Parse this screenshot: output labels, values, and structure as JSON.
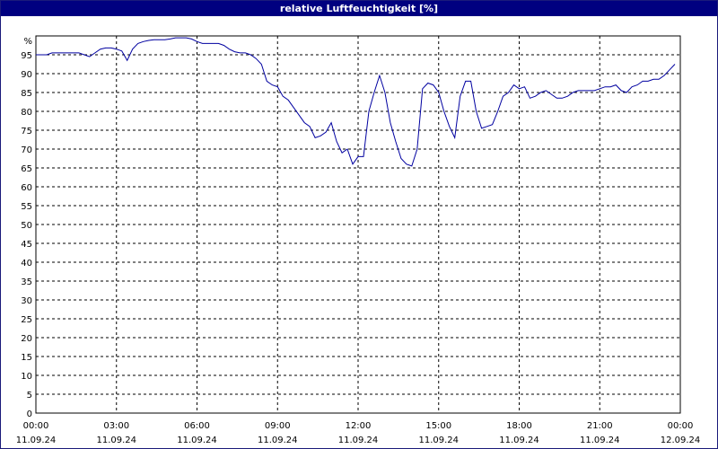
{
  "window": {
    "title": "relative Luftfeuchtigkeit [%]"
  },
  "chart_data": {
    "type": "line",
    "title": "relative Luftfeuchtigkeit [%]",
    "y_unit_label": "%",
    "ylim": [
      0,
      100
    ],
    "y_ticks": [
      0,
      5,
      10,
      15,
      20,
      25,
      30,
      35,
      40,
      45,
      50,
      55,
      60,
      65,
      70,
      75,
      80,
      85,
      90,
      95
    ],
    "x_ticks": [
      {
        "time": "00:00",
        "date": "11.09.24"
      },
      {
        "time": "03:00",
        "date": "11.09.24"
      },
      {
        "time": "06:00",
        "date": "11.09.24"
      },
      {
        "time": "09:00",
        "date": "11.09.24"
      },
      {
        "time": "12:00",
        "date": "11.09.24"
      },
      {
        "time": "15:00",
        "date": "11.09.24"
      },
      {
        "time": "18:00",
        "date": "11.09.24"
      },
      {
        "time": "21:00",
        "date": "11.09.24"
      },
      {
        "time": "00:00",
        "date": "12.09.24"
      }
    ],
    "grid": true,
    "line_color": "#0000a0",
    "series": [
      {
        "x_hours": [
          0.0,
          0.4,
          0.6,
          0.8,
          1.0,
          1.2,
          1.4,
          1.6,
          1.8,
          2.0,
          2.2,
          2.4,
          2.6,
          2.8,
          3.0,
          3.2,
          3.4,
          3.5,
          3.6,
          3.8,
          4.0,
          4.2,
          4.4,
          4.6,
          4.8,
          5.0,
          5.2,
          5.4,
          5.6,
          5.8,
          6.0,
          6.2,
          6.4,
          6.6,
          6.8,
          7.0,
          7.2,
          7.4,
          7.6,
          7.8,
          8.0,
          8.2,
          8.4,
          8.6,
          8.8,
          9.0,
          9.2,
          9.4,
          9.6,
          9.8,
          10.0,
          10.2,
          10.4,
          10.6,
          10.8,
          11.0,
          11.2,
          11.4,
          11.6,
          11.8,
          12.0,
          12.2,
          12.4,
          12.6,
          12.8,
          13.0,
          13.2,
          13.4,
          13.6,
          13.8,
          14.0,
          14.2,
          14.4,
          14.6,
          14.8,
          15.0,
          15.2,
          15.4,
          15.6,
          15.8,
          16.0,
          16.2,
          16.4,
          16.6,
          16.8,
          17.0,
          17.2,
          17.4,
          17.6,
          17.8,
          18.0,
          18.2,
          18.4,
          18.6,
          18.8,
          19.0,
          19.2,
          19.4,
          19.6,
          19.8,
          20.0,
          20.2,
          20.4,
          20.6,
          20.8,
          21.0,
          21.2,
          21.4,
          21.6,
          21.8,
          22.0,
          22.2,
          22.4,
          22.6,
          22.8,
          23.0,
          23.2,
          23.4,
          23.6,
          23.8
        ],
        "y_percent": [
          95.0,
          95.0,
          95.5,
          95.5,
          95.5,
          95.5,
          95.5,
          95.5,
          95.0,
          94.5,
          95.5,
          96.5,
          96.8,
          96.8,
          96.5,
          96.0,
          93.5,
          95.0,
          96.5,
          98.0,
          98.5,
          98.8,
          99.0,
          99.0,
          99.0,
          99.2,
          99.5,
          99.5,
          99.5,
          99.2,
          98.5,
          98.0,
          98.0,
          98.0,
          98.0,
          97.5,
          96.5,
          95.8,
          95.5,
          95.5,
          95.0,
          94.0,
          92.5,
          88.0,
          87.0,
          86.5,
          84.0,
          83.0,
          81.0,
          79.0,
          77.0,
          76.0,
          73.0,
          73.5,
          74.5,
          77.0,
          72.0,
          69.0,
          70.0,
          66.0,
          68.0,
          68.0,
          80.0,
          85.0,
          89.5,
          85.0,
          77.0,
          72.0,
          67.5,
          66.0,
          65.5,
          70.0,
          86.0,
          87.5,
          87.0,
          85.0,
          80.0,
          76.0,
          73.0,
          84.0,
          88.0,
          88.0,
          80.0,
          75.5,
          76.0,
          76.5,
          80.0,
          84.0,
          85.0,
          87.0,
          86.0,
          86.5,
          83.5,
          84.0,
          85.0,
          85.5,
          84.5,
          83.5,
          83.5,
          84.0,
          85.0,
          85.5,
          85.5,
          85.5,
          85.5,
          86.0,
          86.5,
          86.5,
          87.0,
          85.5,
          85.0,
          86.5,
          87.0,
          88.0,
          88.0,
          88.5,
          88.5,
          89.5,
          91.0,
          92.5
        ]
      }
    ]
  }
}
